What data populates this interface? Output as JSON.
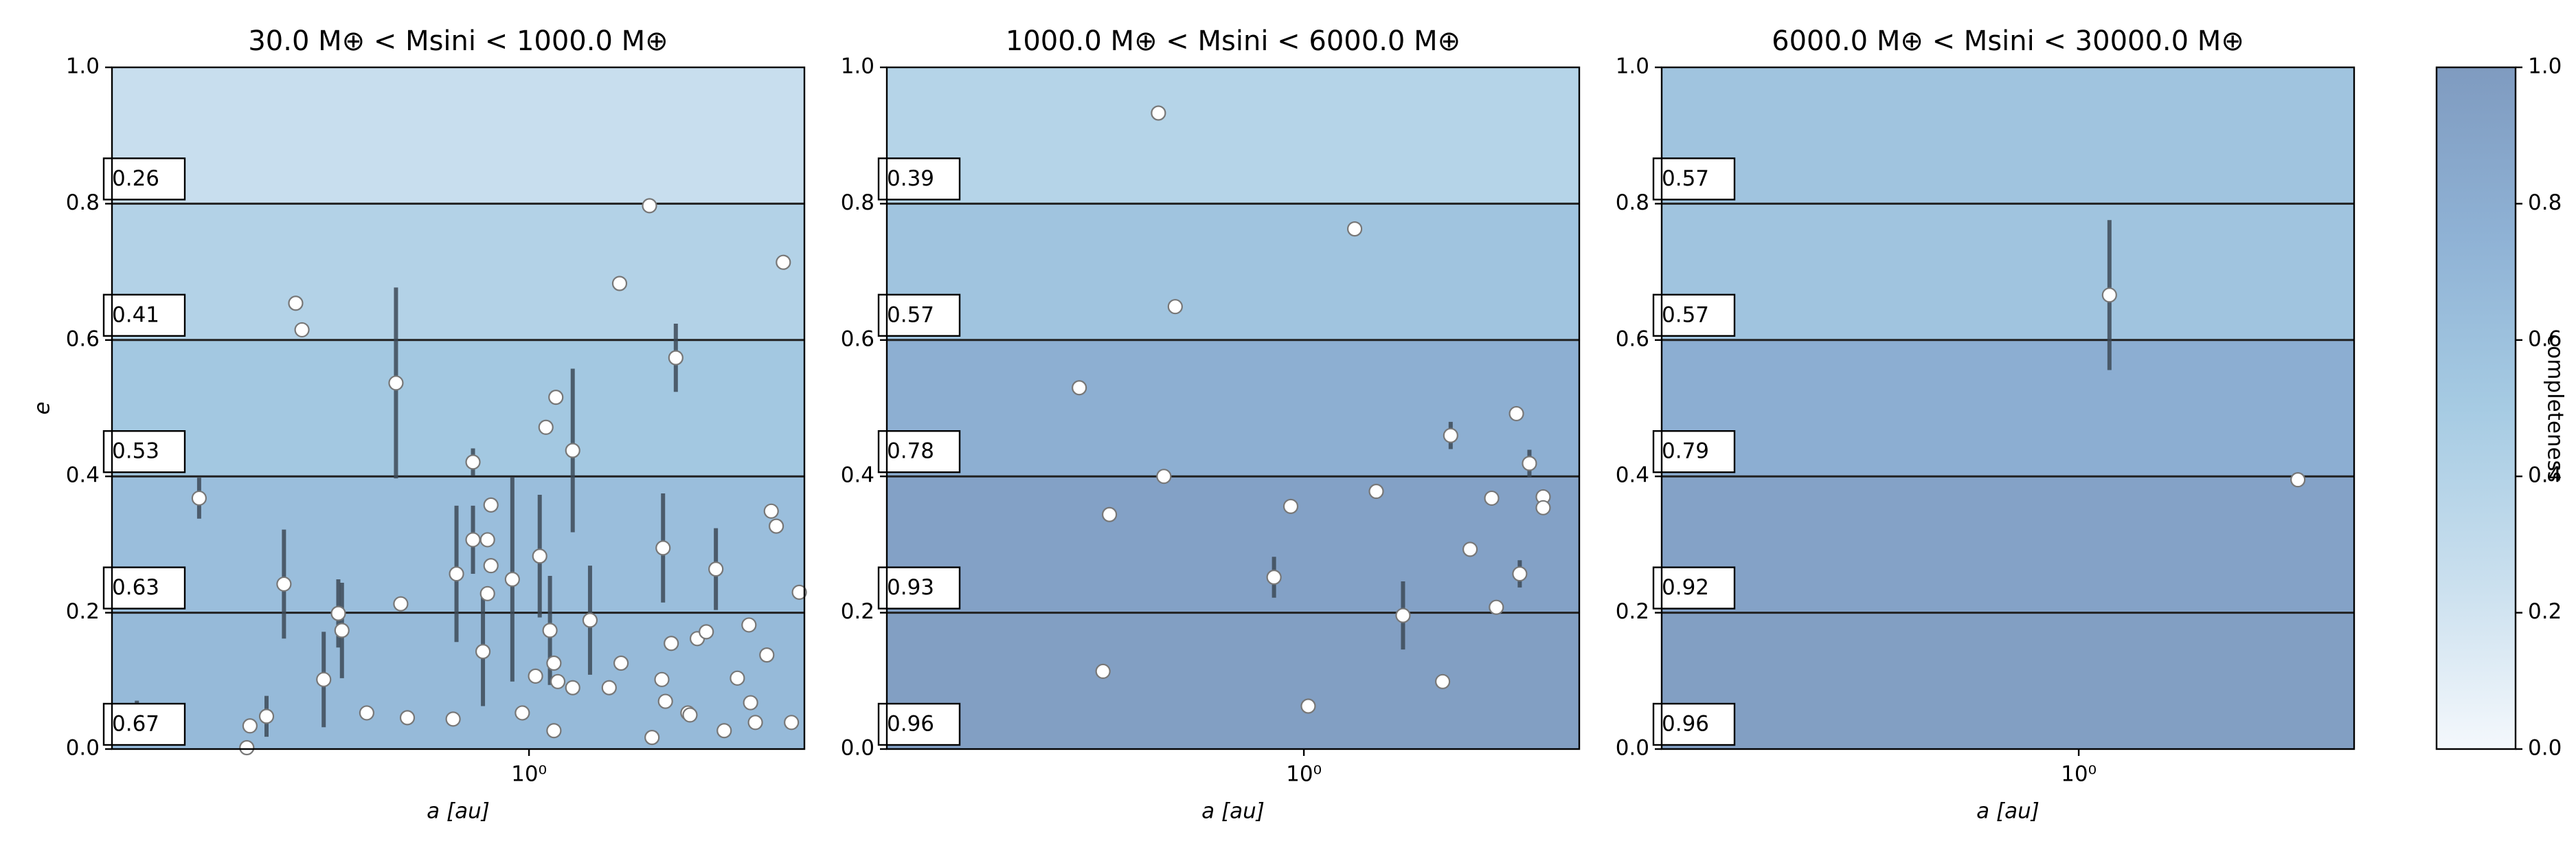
{
  "chart_data": [
    {
      "type": "scatter",
      "title": "30.0 M⊕ < Msini < 1000.0 M⊕",
      "xlabel": "a [au]",
      "ylabel": "e",
      "xscale": "log",
      "xlim": [
        0.15,
        3.5
      ],
      "ylim": [
        0,
        1
      ],
      "xticks": [
        {
          "value": 1,
          "label": "10⁰"
        }
      ],
      "yticks": [
        {
          "value": 0,
          "label": "0.0"
        },
        {
          "value": 0.2,
          "label": "0.2"
        },
        {
          "value": 0.4,
          "label": "0.4"
        },
        {
          "value": 0.6,
          "label": "0.6"
        },
        {
          "value": 0.8,
          "label": "0.8"
        },
        {
          "value": 1,
          "label": "1.0"
        }
      ],
      "bands": {
        "edges": [
          0,
          0.2,
          0.4,
          0.6,
          0.8,
          1
        ],
        "values": [
          0.67,
          0.63,
          0.53,
          0.41,
          0.26
        ]
      },
      "series": [
        {
          "color": "#ffffff",
          "edgecolor": "#777777",
          "errcolor": "#3d4a57",
          "x": [
            1.73,
            3.18,
            0.346,
            0.356,
            1.51,
            0.546,
            1.95,
            1.13,
            1.08,
            1.22,
            0.223,
            0.775,
            0.775,
            0.828,
            0.841,
            0.841,
            0.828,
            0.719,
            0.927,
            1.05,
            0.328,
            0.42,
            0.427,
            0.393,
            0.558,
            0.811,
            1.03,
            1.1,
            1.12,
            1.14,
            1.22,
            1.32,
            1.44,
            1.52,
            1.84,
            1.91,
            1.83,
            1.86,
            2.06,
            2.15,
            2.24,
            2.34,
            2.72,
            2.58,
            2.74,
            3.01,
            3.08,
            3.42,
            2.95,
            0.708,
            0.575,
            0.478,
            0.303,
            0.281,
            0.277,
            0.97,
            1.12,
            1.75,
            2.43,
            2.8,
            3.3,
            0.168,
            2.08
          ],
          "values": [
            0.797,
            0.714,
            0.654,
            0.615,
            0.683,
            0.537,
            0.574,
            0.516,
            0.472,
            0.438,
            0.368,
            0.421,
            0.307,
            0.307,
            0.358,
            0.269,
            0.228,
            0.257,
            0.249,
            0.283,
            0.242,
            0.199,
            0.174,
            0.102,
            0.213,
            0.143,
            0.107,
            0.174,
            0.126,
            0.099,
            0.09,
            0.189,
            0.09,
            0.126,
            0.295,
            0.155,
            0.102,
            0.07,
            0.053,
            0.162,
            0.172,
            0.264,
            0.182,
            0.104,
            0.068,
            0.349,
            0.327,
            0.23,
            0.138,
            0.044,
            0.046,
            0.053,
            0.048,
            0.034,
            0.002,
            0.053,
            0.027,
            0.017,
            0.027,
            0.039,
            0.039,
            0.041,
            0.05
          ],
          "yerr": [
            null,
            null,
            null,
            null,
            null,
            0.14,
            0.05,
            null,
            null,
            0.12,
            0.03,
            0.02,
            0.05,
            null,
            null,
            null,
            null,
            0.1,
            0.15,
            0.09,
            0.08,
            0.05,
            0.07,
            0.07,
            null,
            0.08,
            null,
            0.08,
            null,
            null,
            null,
            0.08,
            null,
            null,
            0.08,
            null,
            null,
            null,
            null,
            null,
            null,
            0.06,
            null,
            null,
            null,
            null,
            null,
            null,
            null,
            null,
            null,
            null,
            0.03,
            null,
            null,
            null,
            null,
            null,
            null,
            null,
            null,
            0.03,
            null
          ]
        }
      ]
    },
    {
      "type": "scatter",
      "title": "1000.0 M⊕ < Msini < 6000.0 M⊕",
      "xlabel": "a [au]",
      "xscale": "log",
      "xlim": [
        0.15,
        3.5
      ],
      "ylim": [
        0,
        1
      ],
      "xticks": [
        {
          "value": 1,
          "label": "10⁰"
        }
      ],
      "yticks": [
        {
          "value": 0,
          "label": "0.0"
        },
        {
          "value": 0.2,
          "label": "0.2"
        },
        {
          "value": 0.4,
          "label": "0.4"
        },
        {
          "value": 0.6,
          "label": "0.6"
        },
        {
          "value": 0.8,
          "label": "0.8"
        },
        {
          "value": 1,
          "label": "1.0"
        }
      ],
      "bands": {
        "edges": [
          0,
          0.2,
          0.4,
          0.6,
          0.8,
          1
        ],
        "values": [
          0.96,
          0.93,
          0.78,
          0.57,
          0.39
        ]
      },
      "series": [
        {
          "color": "#ffffff",
          "edgecolor": "#777777",
          "errcolor": "#3d4a57",
          "x": [
            0.516,
            1.26,
            0.557,
            0.36,
            1.95,
            2.63,
            2.79,
            0.529,
            2.97,
            2.97,
            1.39,
            0.942,
            0.413,
            2.35,
            2.13,
            2.67,
            0.873,
            2.4,
            1.57,
            1.88,
            0.401,
            1.02
          ],
          "values": [
            0.933,
            0.763,
            0.649,
            0.53,
            0.46,
            0.492,
            0.419,
            0.4,
            0.37,
            0.354,
            0.378,
            0.356,
            0.344,
            0.368,
            0.293,
            0.257,
            0.252,
            0.208,
            0.196,
            0.099,
            0.114,
            0.063
          ],
          "yerr": [
            null,
            null,
            null,
            null,
            0.02,
            null,
            0.02,
            null,
            null,
            null,
            null,
            null,
            null,
            null,
            null,
            0.02,
            0.03,
            null,
            0.05,
            null,
            null,
            null
          ]
        }
      ]
    },
    {
      "type": "scatter",
      "title": "6000.0 M⊕ < Msini < 30000.0 M⊕",
      "xlabel": "a [au]",
      "xscale": "log",
      "xlim": [
        0.15,
        3.5
      ],
      "ylim": [
        0,
        1
      ],
      "xticks": [
        {
          "value": 1,
          "label": "10⁰"
        }
      ],
      "yticks": [
        {
          "value": 0,
          "label": "0.0"
        },
        {
          "value": 0.2,
          "label": "0.2"
        },
        {
          "value": 0.4,
          "label": "0.4"
        },
        {
          "value": 0.6,
          "label": "0.6"
        },
        {
          "value": 0.8,
          "label": "0.8"
        },
        {
          "value": 1,
          "label": "1.0"
        }
      ],
      "bands": {
        "edges": [
          0,
          0.2,
          0.4,
          0.6,
          0.8,
          1
        ],
        "values": [
          0.96,
          0.92,
          0.79,
          0.57,
          0.57
        ]
      },
      "series": [
        {
          "color": "#ffffff",
          "edgecolor": "#777777",
          "errcolor": "#3d4a57",
          "x": [
            1.15,
            2.71
          ],
          "values": [
            0.666,
            0.395
          ],
          "yerr": [
            0.11,
            null
          ]
        }
      ]
    },
    {
      "type": "colorbar",
      "label": "completeness",
      "ylim": [
        0,
        1
      ],
      "yticks": [
        {
          "value": 0,
          "label": "0.0"
        },
        {
          "value": 0.2,
          "label": "0.2"
        },
        {
          "value": 0.4,
          "label": "0.4"
        },
        {
          "value": 0.6,
          "label": "0.6"
        },
        {
          "value": 0.8,
          "label": "0.8"
        },
        {
          "value": 1,
          "label": "1.0"
        }
      ],
      "colormap": [
        "#f4f8fc",
        "#c9dfee",
        "#a6cbe3",
        "#8fb2d5",
        "#7f9bc0"
      ]
    }
  ]
}
